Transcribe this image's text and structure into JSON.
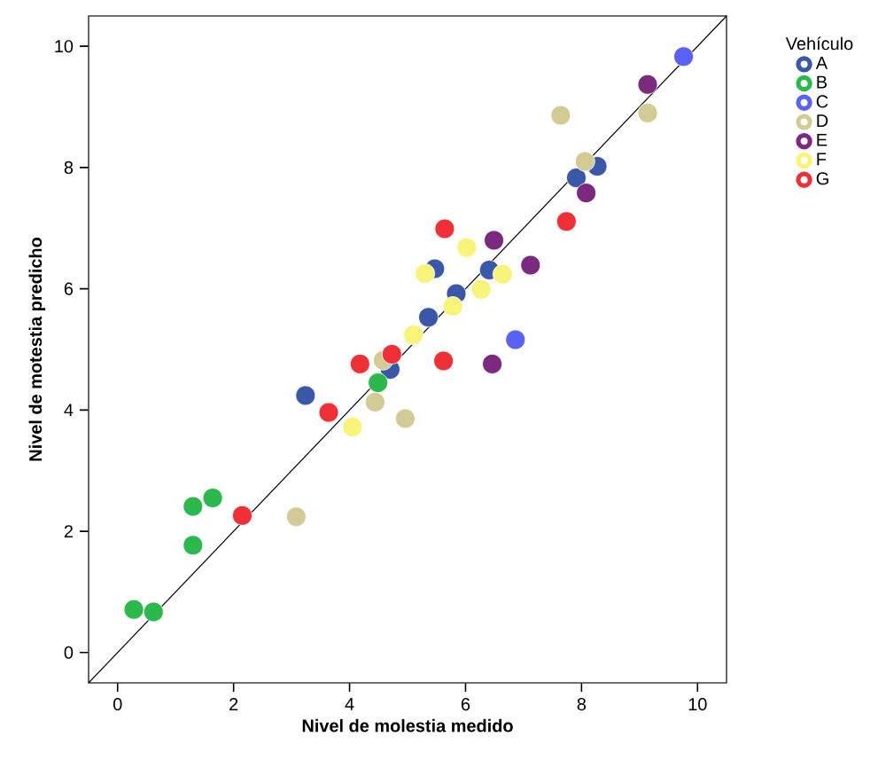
{
  "chart_data": {
    "type": "scatter",
    "xlabel": "Nivel de molestia medido",
    "ylabel": "Nivel de motestia predicho",
    "legend_title": "Vehículo",
    "xlim": [
      -0.5,
      10.5
    ],
    "ylim": [
      -0.5,
      10.5
    ],
    "xticks": [
      0,
      2,
      4,
      6,
      8,
      10
    ],
    "yticks": [
      0,
      2,
      4,
      6,
      8,
      10
    ],
    "marker": "circle",
    "legend": "right",
    "series": [
      {
        "type": "line",
        "marker": "none",
        "color": "#000000",
        "x": [
          -0.5,
          10.5
        ],
        "values": [
          -0.5,
          10.5
        ]
      },
      {
        "name": "A",
        "color": "#3b58a8",
        "x": [
          3.24,
          4.7,
          5.36,
          5.47,
          5.84,
          6.41,
          7.91,
          8.27
        ],
        "values": [
          4.24,
          4.67,
          5.53,
          6.33,
          5.92,
          6.31,
          7.83,
          8.02
        ]
      },
      {
        "name": "B",
        "color": "#2db84d",
        "x": [
          0.28,
          0.62,
          1.3,
          1.3,
          1.64,
          4.49
        ],
        "values": [
          0.71,
          0.67,
          1.77,
          2.41,
          2.55,
          4.45
        ]
      },
      {
        "name": "C",
        "color": "#5a62f5",
        "x": [
          6.86,
          9.76
        ],
        "values": [
          5.16,
          9.83
        ]
      },
      {
        "name": "D",
        "color": "#d2cb96",
        "x": [
          3.08,
          4.44,
          4.58,
          4.96,
          7.64,
          8.06,
          9.14
        ],
        "values": [
          2.24,
          4.13,
          4.82,
          3.86,
          8.86,
          8.1,
          8.9
        ]
      },
      {
        "name": "E",
        "color": "#7b2a80",
        "x": [
          6.46,
          6.49,
          7.12,
          8.08,
          9.14
        ],
        "values": [
          4.76,
          6.8,
          6.39,
          7.58,
          9.37
        ]
      },
      {
        "name": "F",
        "color": "#f8f47a",
        "x": [
          4.05,
          5.1,
          5.3,
          5.78,
          6.02,
          6.27,
          6.64
        ],
        "values": [
          3.72,
          5.24,
          6.25,
          5.71,
          6.68,
          5.99,
          6.24
        ]
      },
      {
        "name": "G",
        "color": "#ef3037",
        "x": [
          2.15,
          3.64,
          4.18,
          4.73,
          5.62,
          5.64,
          7.74
        ],
        "values": [
          2.26,
          3.96,
          4.76,
          4.92,
          4.81,
          6.99,
          7.11
        ]
      }
    ]
  }
}
